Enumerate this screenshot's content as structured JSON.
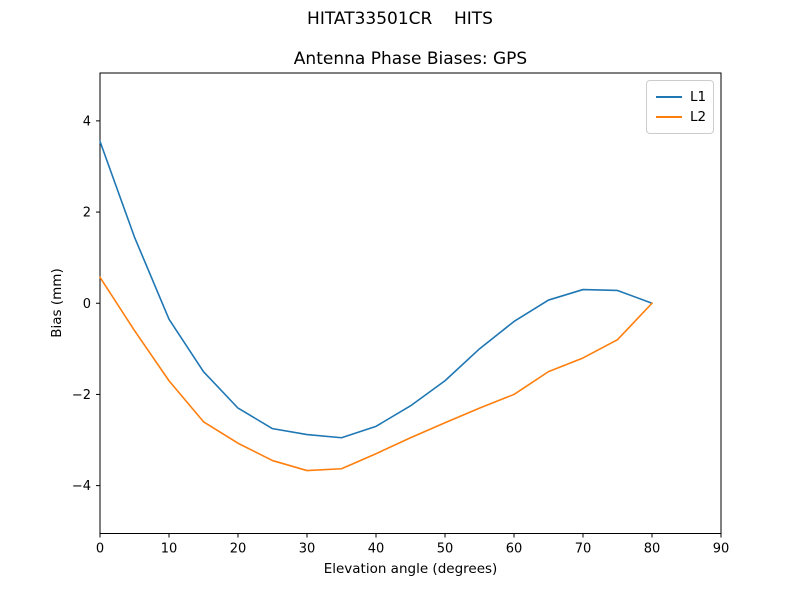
{
  "figure": {
    "suptitle": "HITAT33501CR    HITS",
    "background": "#ffffff"
  },
  "chart_data": {
    "type": "line",
    "title": "Antenna Phase Biases: GPS",
    "xlabel": "Elevation angle (degrees)",
    "ylabel": "Bias (mm)",
    "xlim": [
      0,
      90
    ],
    "ylim": [
      -5.05,
      5.05
    ],
    "xticks": [
      0,
      10,
      20,
      30,
      40,
      50,
      60,
      70,
      80,
      90
    ],
    "yticks": [
      -4,
      -2,
      0,
      2,
      4
    ],
    "grid": false,
    "legend_position": "upper right",
    "x": [
      0,
      5,
      10,
      15,
      20,
      25,
      30,
      35,
      40,
      45,
      50,
      55,
      60,
      65,
      70,
      75,
      80
    ],
    "series": [
      {
        "name": "L1",
        "color": "#1f77b4",
        "values": [
          3.55,
          1.45,
          -0.35,
          -1.5,
          -2.3,
          -2.75,
          -2.88,
          -2.95,
          -2.7,
          -2.25,
          -1.7,
          -1.0,
          -0.4,
          0.07,
          0.3,
          0.28,
          0.0
        ]
      },
      {
        "name": "L2",
        "color": "#ff7f0e",
        "values": [
          0.57,
          -0.6,
          -1.7,
          -2.6,
          -3.07,
          -3.45,
          -3.67,
          -3.63,
          -3.3,
          -2.95,
          -2.62,
          -2.3,
          -2.0,
          -1.5,
          -1.2,
          -0.8,
          0.0
        ]
      }
    ]
  }
}
